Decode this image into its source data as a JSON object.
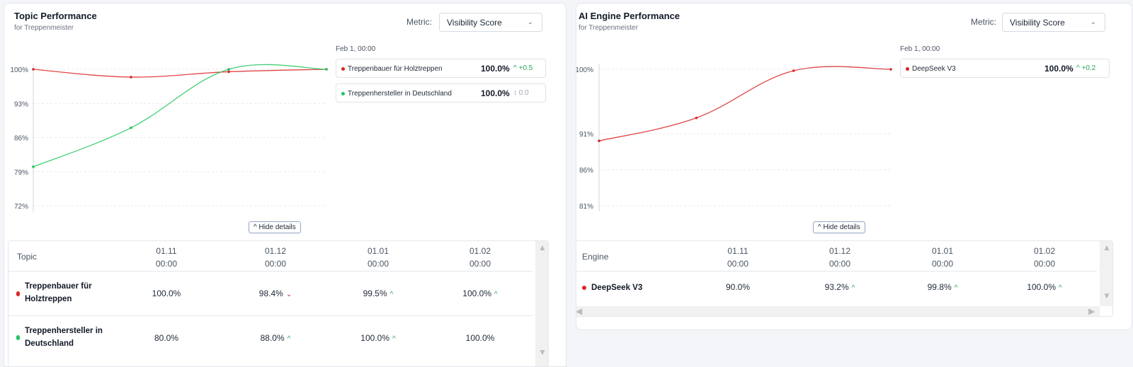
{
  "topic_panel": {
    "title": "Topic Performance",
    "subtitle": "for Treppenmeister",
    "metric_label": "Metric:",
    "metric_value": "Visibility Score",
    "tooltip_time": "Feb 1, 00:00",
    "tooltip_items": [
      {
        "name": "Treppenbauer für Holztreppen",
        "value": "100.0%",
        "change": "+0.5",
        "change_icon": "up-arrow-icon",
        "color": "#dc2626"
      },
      {
        "name": "Treppenhersteller in Deutschland",
        "value": "100.0%",
        "change": "0.0",
        "change_icon": "neutral-arrow-icon",
        "color": "#22c55e"
      }
    ],
    "hide_details": "Hide details",
    "table": {
      "first_header": "Topic",
      "columns": [
        {
          "date": "01.11",
          "time": "00:00"
        },
        {
          "date": "01.12",
          "time": "00:00"
        },
        {
          "date": "01.01",
          "time": "00:00"
        },
        {
          "date": "01.02",
          "time": "00:00"
        }
      ],
      "rows": [
        {
          "name_line1": "Treppenbauer für",
          "name_line2": "Holztreppen",
          "color": "#dc2626",
          "cells": [
            {
              "v": "100.0%",
              "t": ""
            },
            {
              "v": "98.4%",
              "t": "down"
            },
            {
              "v": "99.5%",
              "t": "up"
            },
            {
              "v": "100.0%",
              "t": "up"
            }
          ]
        },
        {
          "name_line1": "Treppenhersteller in",
          "name_line2": "Deutschland",
          "color": "#22c55e",
          "cells": [
            {
              "v": "80.0%",
              "t": ""
            },
            {
              "v": "88.0%",
              "t": "up"
            },
            {
              "v": "100.0%",
              "t": "up"
            },
            {
              "v": "100.0%",
              "t": ""
            }
          ]
        }
      ]
    },
    "chart_data": {
      "type": "line",
      "x": [
        "01.11",
        "01.12",
        "01.01",
        "01.02"
      ],
      "y_ticks": [
        "100%",
        "93%",
        "86%",
        "79%",
        "72%"
      ],
      "ylim": [
        72,
        100
      ],
      "series": [
        {
          "name": "Treppenbauer für Holztreppen",
          "color": "#dc2626",
          "values": [
            100.0,
            98.4,
            99.5,
            100.0
          ]
        },
        {
          "name": "Treppenhersteller in Deutschland",
          "color": "#22c55e",
          "values": [
            80.0,
            88.0,
            100.0,
            100.0
          ]
        }
      ]
    }
  },
  "engine_panel": {
    "title": "AI Engine Performance",
    "subtitle": "for Treppenmeister",
    "metric_label": "Metric:",
    "metric_value": "Visibility Score",
    "tooltip_time": "Feb 1, 00:00",
    "tooltip_items": [
      {
        "name": "DeepSeek V3",
        "value": "100.0%",
        "change": "+0.2",
        "change_icon": "up-arrow-icon",
        "color": "#dc2626"
      }
    ],
    "hide_details": "Hide details",
    "table": {
      "first_header": "Engine",
      "columns": [
        {
          "date": "01.11",
          "time": "00:00"
        },
        {
          "date": "01.12",
          "time": "00:00"
        },
        {
          "date": "01.01",
          "time": "00:00"
        },
        {
          "date": "01.02",
          "time": "00:00"
        }
      ],
      "rows": [
        {
          "name": "DeepSeek V3",
          "color": "#dc2626",
          "cells": [
            {
              "v": "90.0%",
              "t": ""
            },
            {
              "v": "93.2%",
              "t": "up"
            },
            {
              "v": "99.8%",
              "t": "up"
            },
            {
              "v": "100.0%",
              "t": "up"
            }
          ]
        }
      ]
    },
    "chart_data": {
      "type": "line",
      "x": [
        "01.11",
        "01.12",
        "01.01",
        "01.02"
      ],
      "y_ticks": [
        "100%",
        "91%",
        "86%",
        "81%"
      ],
      "y_tick_values": [
        100,
        91,
        86,
        81
      ],
      "series": [
        {
          "name": "DeepSeek V3",
          "color": "#dc2626",
          "values": [
            90.0,
            93.2,
            99.8,
            100.0
          ]
        }
      ]
    }
  }
}
